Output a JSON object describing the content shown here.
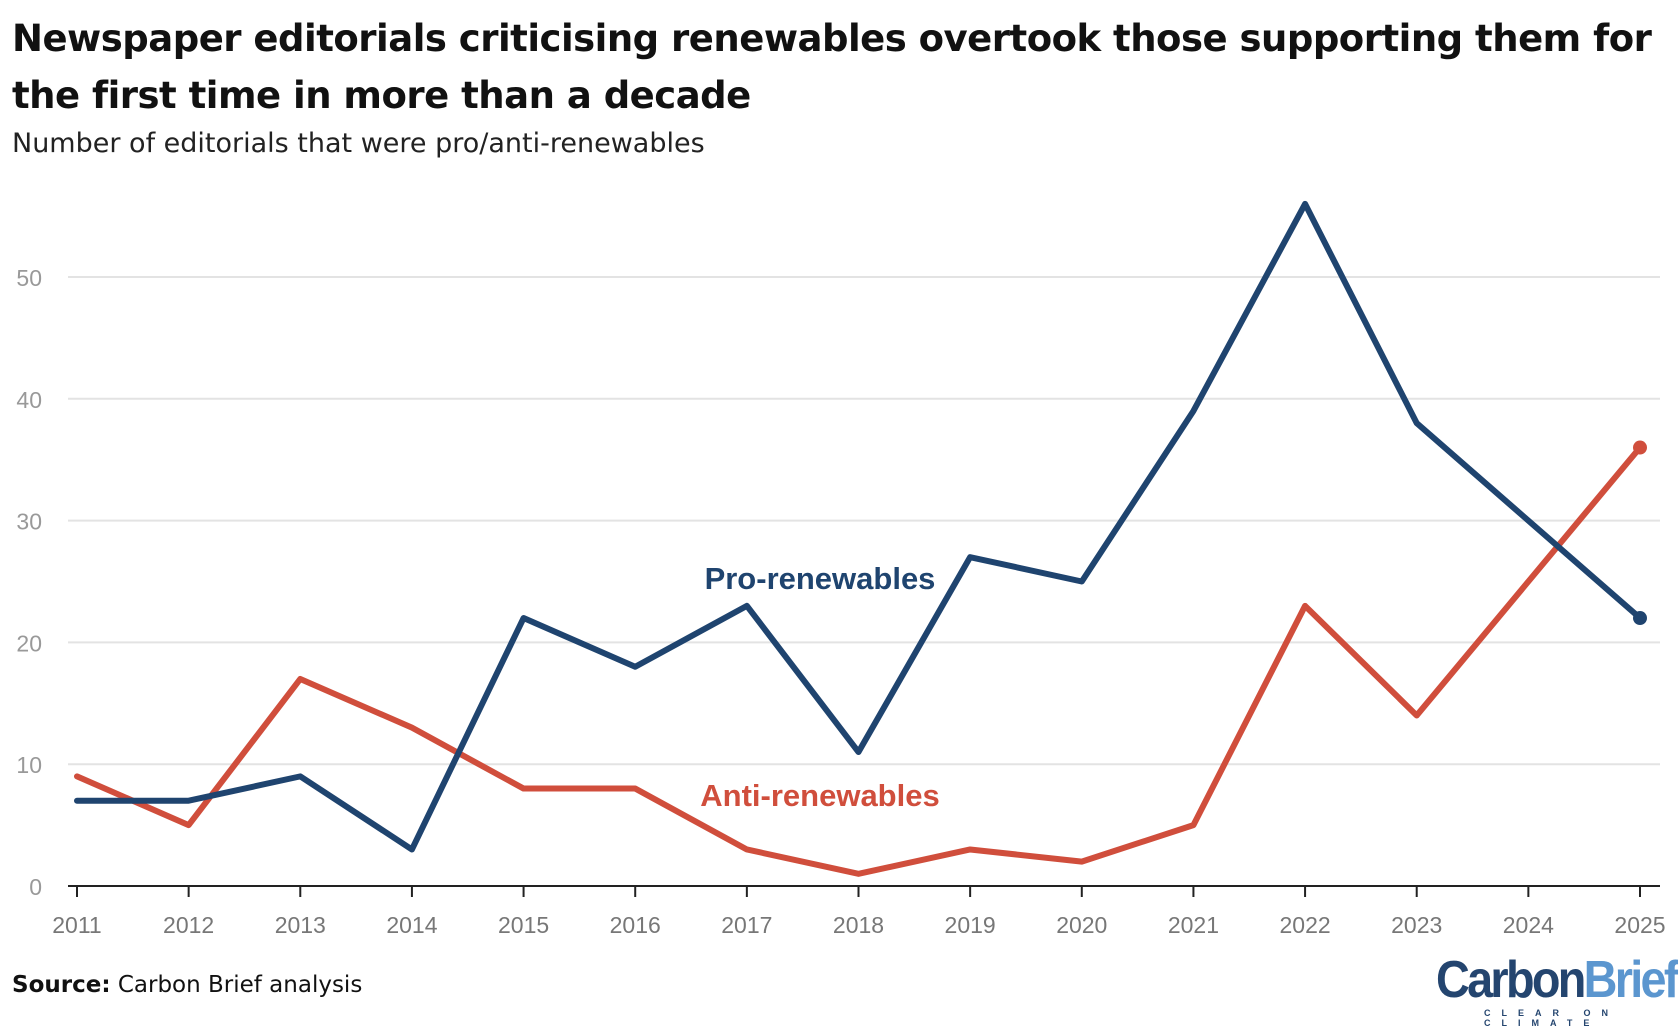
{
  "title": "Newspaper editorials criticising renewables overtook those supporting them for the first time in more than a decade",
  "subtitle": "Number of editorials that were pro/anti-renewables",
  "source": {
    "label": "Source:",
    "text": "Carbon Brief analysis"
  },
  "logo": {
    "part1": "Carbon",
    "part2": "Brief",
    "tagline": "CLEAR ON CLIMATE",
    "color1": "#24456f",
    "color2": "#5b96cf"
  },
  "chart_data": {
    "type": "line",
    "title": "Newspaper editorials criticising renewables overtook those supporting them for the first time in more than a decade",
    "subtitle": "Number of editorials that were pro/anti-renewables",
    "x": [
      2011,
      2012,
      2013,
      2014,
      2015,
      2016,
      2017,
      2018,
      2019,
      2020,
      2021,
      2022,
      2023,
      2024,
      2025
    ],
    "x_tick_labels": [
      "2011",
      "2012",
      "2013",
      "2014",
      "2015",
      "2016",
      "2017",
      "2018",
      "2019",
      "2020",
      "2021",
      "2022",
      "2023",
      "2024",
      "2025"
    ],
    "y_ticks": [
      0,
      10,
      20,
      30,
      40,
      50
    ],
    "y_tick_labels": [
      "0",
      "10",
      "20",
      "30",
      "40",
      "50"
    ],
    "ylim": [
      0,
      56
    ],
    "grid": "horizontal",
    "legend": "inline labels",
    "series": [
      {
        "name": "Pro-renewables",
        "color": "#1f446f",
        "values": [
          7,
          7,
          9,
          3,
          22,
          18,
          23,
          11,
          27,
          25,
          39,
          56,
          38,
          30,
          22
        ]
      },
      {
        "name": "Anti-renewables",
        "color": "#d04e3c",
        "values": [
          9,
          5,
          17,
          13,
          8,
          8,
          3,
          1,
          3,
          2,
          5,
          23,
          14,
          25,
          36
        ]
      }
    ]
  }
}
